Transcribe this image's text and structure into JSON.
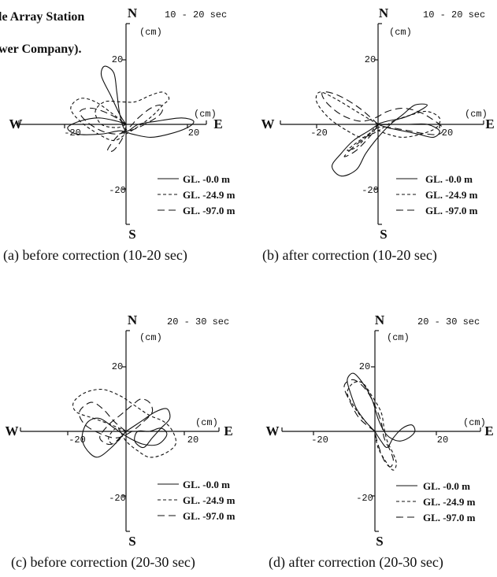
{
  "header": {
    "line1": "le Array Station",
    "line2": "wer Company)."
  },
  "legend_labels": [
    "GL. -0.0 m",
    "GL. -24.9 m",
    "GL. -97.0 m"
  ],
  "panels": [
    {
      "time": "10 - 20 sec",
      "caption": "(a) before correction (10-20 sec)",
      "legend": [
        "GL. -0.0 m",
        "GL. -24.9 m",
        "GL. -97.0 m"
      ],
      "axis": {
        "unit": "(cm)",
        "north": "N",
        "south": "S",
        "east": "E",
        "west": "W",
        "tick_pos": "20",
        "tick_neg": "-20"
      }
    },
    {
      "time": "10 - 20 sec",
      "caption": "(b) after correction (10-20 sec)",
      "legend": [
        "GL. -0.0 m",
        "GL. -24.9 m",
        "GL. -97.0 m"
      ],
      "axis": {
        "unit": "(cm)",
        "north": "N",
        "south": "S",
        "east": "E",
        "west": "W",
        "tick_pos": "20",
        "tick_neg": "-20"
      }
    },
    {
      "time": "20 - 30 sec",
      "caption": "(c) before correction (20-30 sec)",
      "legend": [
        "GL. -0.0 m",
        "GL. -24.9 m",
        "GL. -97.0 m"
      ],
      "axis": {
        "unit": "(cm)",
        "north": "N",
        "south": "S",
        "east": "E",
        "west": "W",
        "tick_pos": "20",
        "tick_neg": "-20"
      }
    },
    {
      "time": "20 - 30 sec",
      "caption": "(d) after correction (20-30 sec)",
      "legend": [
        "GL. -0.0 m",
        "GL. -24.9 m",
        "GL. -97.0 m"
      ],
      "axis": {
        "unit": "(cm)",
        "north": "N",
        "south": "S",
        "east": "E",
        "west": "W",
        "tick_pos": "20",
        "tick_neg": "-20"
      }
    }
  ],
  "chart_data": [
    {
      "type": "line",
      "xlabel": "(cm)",
      "ylabel": "(cm)",
      "xlim": [
        -27,
        27
      ],
      "ylim": [
        -27,
        27
      ],
      "legend_position": "bottom-right",
      "series": [
        {
          "name": "GL. -0.0 m",
          "x": [
            0,
            -3,
            -9,
            -15,
            -19,
            -16,
            -8,
            -2,
            2,
            8,
            14,
            20,
            22,
            18,
            10,
            4,
            0,
            -2,
            -3,
            -4,
            -7,
            -8,
            -5,
            -2,
            0
          ],
          "y": [
            0,
            1,
            2,
            1,
            -1,
            -3,
            -3,
            -2,
            -3,
            -4,
            -3,
            -1,
            1,
            2,
            1,
            0,
            -2,
            3,
            10,
            16,
            18,
            15,
            9,
            3,
            0
          ]
        },
        {
          "name": "GL. -24.9 m",
          "x": [
            0,
            -4,
            -10,
            -15,
            -18,
            -15,
            -9,
            -4,
            0,
            5,
            9,
            12,
            14,
            12,
            8,
            3,
            -2,
            -7,
            -10,
            -8,
            -3,
            0
          ],
          "y": [
            0,
            3,
            7,
            8,
            5,
            1,
            -3,
            -5,
            -3,
            0,
            3,
            6,
            8,
            10,
            9,
            7,
            7,
            7,
            4,
            0,
            -1,
            0
          ]
        },
        {
          "name": "GL. -97.0 m",
          "x": [
            0,
            -5,
            -11,
            -15,
            -13,
            -8,
            -3,
            1,
            4,
            8,
            11,
            12,
            11,
            8,
            4,
            1,
            -2,
            -4,
            -6,
            -4,
            -1,
            0
          ],
          "y": [
            0,
            3,
            5,
            4,
            1,
            -2,
            -3,
            -2,
            -1,
            1,
            3,
            5,
            6,
            5,
            2,
            -1,
            -3,
            -5,
            -8,
            -8,
            -4,
            0
          ]
        }
      ]
    },
    {
      "type": "line",
      "xlabel": "(cm)",
      "ylabel": "(cm)",
      "xlim": [
        -27,
        27
      ],
      "ylim": [
        -27,
        27
      ],
      "legend_position": "bottom-right",
      "series": [
        {
          "name": "GL. -0.0 m",
          "x": [
            0,
            -3,
            -8,
            -12,
            -15,
            -12,
            -7,
            -4,
            0,
            4,
            8,
            12,
            16,
            13,
            8,
            3,
            0,
            5,
            10,
            16,
            20,
            18,
            13,
            8,
            3,
            0
          ],
          "y": [
            0,
            -2,
            -5,
            -9,
            -13,
            -16,
            -14,
            -9,
            -4,
            0,
            3,
            6,
            6,
            4,
            2,
            1,
            0,
            0,
            0,
            0,
            -2,
            -4,
            -3,
            -2,
            -1,
            0
          ]
        },
        {
          "name": "GL. -24.9 m",
          "x": [
            0,
            -7,
            -14,
            -19,
            -20,
            -16,
            -10,
            -5,
            0,
            5,
            11,
            16,
            20,
            19,
            14,
            8,
            3,
            -1,
            -6,
            -10,
            -7,
            -3,
            0
          ],
          "y": [
            0,
            4,
            8,
            10,
            7,
            2,
            -2,
            -4,
            -2,
            1,
            3,
            4,
            2,
            -1,
            -3,
            -4,
            -3,
            -2,
            -5,
            -8,
            -7,
            -3,
            0
          ]
        },
        {
          "name": "GL. -97.0 m",
          "x": [
            0,
            -6,
            -13,
            -18,
            -17,
            -12,
            -6,
            -1,
            3,
            8,
            13,
            17,
            21,
            20,
            16,
            10,
            4,
            0,
            -4,
            -8,
            -11,
            -7,
            -2,
            0
          ],
          "y": [
            0,
            5,
            9,
            10,
            7,
            3,
            1,
            2,
            4,
            5,
            4,
            2,
            -1,
            -3,
            -3,
            -2,
            -1,
            -1,
            -4,
            -7,
            -10,
            -8,
            -3,
            0
          ]
        }
      ]
    },
    {
      "type": "line",
      "xlabel": "(cm)",
      "ylabel": "(cm)",
      "xlim": [
        -27,
        27
      ],
      "ylim": [
        -27,
        27
      ],
      "legend_position": "bottom-right",
      "series": [
        {
          "name": "GL. -0.0 m",
          "x": [
            0,
            5,
            10,
            14,
            15,
            12,
            9,
            6,
            3,
            4,
            8,
            12,
            14,
            11,
            6,
            1,
            -4,
            -9,
            -13,
            -15,
            -14,
            -10,
            -5,
            0
          ],
          "y": [
            0,
            3,
            6,
            7,
            4,
            1,
            -2,
            -5,
            -3,
            0,
            0,
            1,
            -1,
            -4,
            -4,
            -2,
            1,
            4,
            3,
            -1,
            -5,
            -8,
            -5,
            0
          ]
        },
        {
          "name": "GL. -24.9 m",
          "x": [
            0,
            -5,
            -11,
            -17,
            -18,
            -14,
            -8,
            -2,
            3,
            8,
            13,
            16,
            17,
            13,
            8,
            4,
            0,
            -3,
            -6,
            -4,
            0
          ],
          "y": [
            0,
            2,
            4,
            6,
            9,
            12,
            13,
            11,
            8,
            5,
            3,
            0,
            -4,
            -7,
            -8,
            -6,
            -3,
            1,
            -2,
            -4,
            0
          ]
        },
        {
          "name": "GL. -97.0 m",
          "x": [
            0,
            -4,
            -8,
            -12,
            -16,
            -14,
            -8,
            -3,
            2,
            6,
            9,
            8,
            5,
            2,
            -2,
            -6,
            -9,
            -5,
            0
          ],
          "y": [
            0,
            3,
            7,
            9,
            6,
            2,
            -1,
            -2,
            0,
            3,
            6,
            9,
            10,
            8,
            5,
            2,
            -2,
            -4,
            0
          ]
        }
      ]
    },
    {
      "type": "line",
      "xlabel": "(cm)",
      "ylabel": "(cm)",
      "xlim": [
        -27,
        27
      ],
      "ylim": [
        -27,
        27
      ],
      "legend_position": "bottom-right",
      "series": [
        {
          "name": "GL. -0.0 m",
          "x": [
            0,
            -3,
            -6,
            -8,
            -9,
            -7,
            -4,
            -1,
            1,
            3,
            5,
            8,
            11,
            13,
            12,
            9,
            6,
            4,
            2,
            0
          ],
          "y": [
            0,
            3,
            7,
            12,
            16,
            18,
            15,
            10,
            4,
            0,
            -2,
            -3,
            -2,
            0,
            2,
            1,
            -2,
            -5,
            -3,
            0
          ]
        },
        {
          "name": "GL. -24.9 m",
          "x": [
            0,
            -4,
            -7,
            -9,
            -7,
            -4,
            -1,
            2,
            3,
            4,
            6,
            7,
            6,
            4,
            1,
            0
          ],
          "y": [
            0,
            4,
            8,
            12,
            15,
            15,
            11,
            6,
            1,
            -3,
            -7,
            -10,
            -12,
            -10,
            -5,
            0
          ]
        },
        {
          "name": "GL. -97.0 m",
          "x": [
            0,
            -5,
            -8,
            -10,
            -7,
            -3,
            0,
            2,
            3,
            5,
            6,
            5,
            3,
            1,
            0
          ],
          "y": [
            0,
            4,
            9,
            14,
            16,
            13,
            8,
            3,
            -2,
            -6,
            -9,
            -11,
            -9,
            -4,
            0
          ]
        }
      ]
    }
  ]
}
